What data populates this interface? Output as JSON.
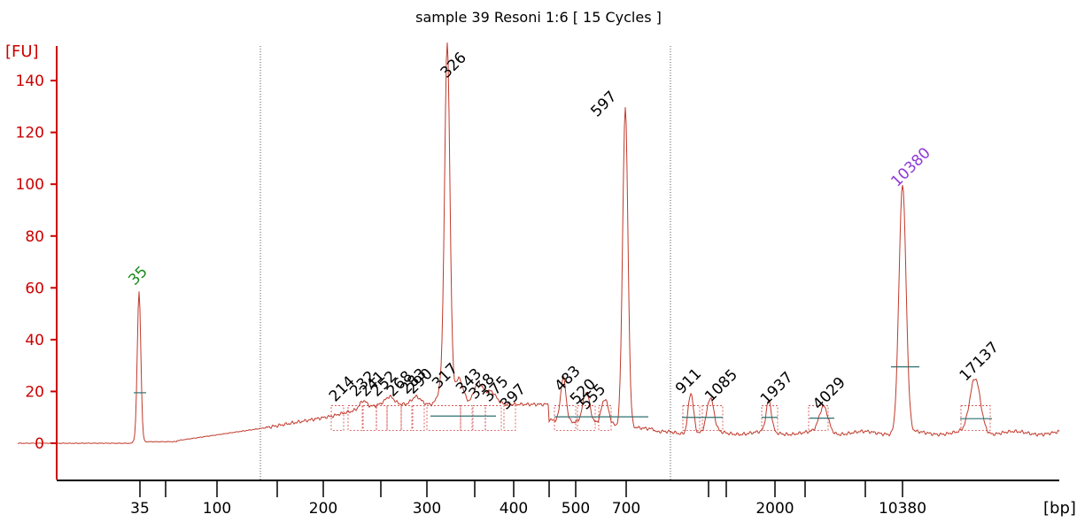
{
  "chart_data": {
    "type": "line",
    "title": "sample 39 Resoni 1:6  [ 15 Cycles ]",
    "xlabel": "[bp]",
    "ylabel": "[FU]",
    "ylim": [
      -13,
      150
    ],
    "y_ticks": [
      0,
      20,
      40,
      60,
      80,
      100,
      120,
      140
    ],
    "x_tick_labels": [
      "35",
      "100",
      "200",
      "300",
      "400",
      "500",
      "700",
      "2000",
      "10380"
    ],
    "peak_labels": [
      {
        "text": "35",
        "bp": 35,
        "fu": 58,
        "color": "#1a8a1a"
      },
      {
        "text": "214",
        "bp": 214,
        "fu": 13
      },
      {
        "text": "232",
        "bp": 232,
        "fu": 15
      },
      {
        "text": "241",
        "bp": 241,
        "fu": 15
      },
      {
        "text": "252",
        "bp": 252,
        "fu": 15
      },
      {
        "text": "268",
        "bp": 268,
        "fu": 15
      },
      {
        "text": "283",
        "bp": 283,
        "fu": 16
      },
      {
        "text": "290",
        "bp": 290,
        "fu": 16
      },
      {
        "text": "317",
        "bp": 317,
        "fu": 18
      },
      {
        "text": "326",
        "bp": 326,
        "fu": 138
      },
      {
        "text": "343",
        "bp": 343,
        "fu": 16
      },
      {
        "text": "358",
        "bp": 358,
        "fu": 14
      },
      {
        "text": "375",
        "bp": 375,
        "fu": 13
      },
      {
        "text": "397",
        "bp": 397,
        "fu": 10
      },
      {
        "text": "483",
        "bp": 483,
        "fu": 17
      },
      {
        "text": "520",
        "bp": 520,
        "fu": 12
      },
      {
        "text": "555",
        "bp": 555,
        "fu": 10
      },
      {
        "text": "597",
        "bp": 597,
        "fu": 123
      },
      {
        "text": "911",
        "bp": 911,
        "fu": 16
      },
      {
        "text": "1085",
        "bp": 1085,
        "fu": 13
      },
      {
        "text": "1937",
        "bp": 1937,
        "fu": 12
      },
      {
        "text": "4029",
        "bp": 4029,
        "fu": 10
      },
      {
        "text": "10380",
        "bp": 10380,
        "fu": 96,
        "color": "#8e3ad6"
      },
      {
        "text": "17137",
        "bp": 17137,
        "fu": 21
      }
    ],
    "grid": false,
    "legend": "none",
    "colors": {
      "trace": "#c0392b",
      "axis": "#cc0000",
      "baseline": "#2f6f6f"
    }
  }
}
